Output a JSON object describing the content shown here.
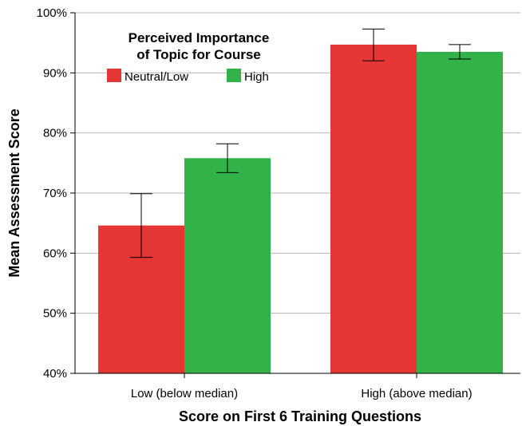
{
  "chart_data": {
    "type": "bar",
    "xlabel": "Score on First 6 Training Questions",
    "ylabel": "Mean Assessment Score",
    "ylim": [
      40,
      100
    ],
    "y_unit": "%",
    "yticks": [
      "40%",
      "50%",
      "60%",
      "70%",
      "80%",
      "90%",
      "100%"
    ],
    "grid": "horizontal",
    "legend": {
      "title_lines": [
        "Perceived Importance",
        "of Topic for Course"
      ],
      "placement": "top-left"
    },
    "categories": [
      "Low (below median)",
      "High (above median)"
    ],
    "series": [
      {
        "name": "Neutral/Low",
        "color": "#e53535",
        "values": [
          64.6,
          94.7
        ],
        "error_low": [
          59.3,
          92.0
        ],
        "error_high": [
          69.9,
          97.3
        ]
      },
      {
        "name": "High",
        "color": "#33b24a",
        "values": [
          75.8,
          93.5
        ],
        "error_low": [
          73.4,
          92.3
        ],
        "error_high": [
          78.2,
          94.7
        ]
      }
    ]
  }
}
